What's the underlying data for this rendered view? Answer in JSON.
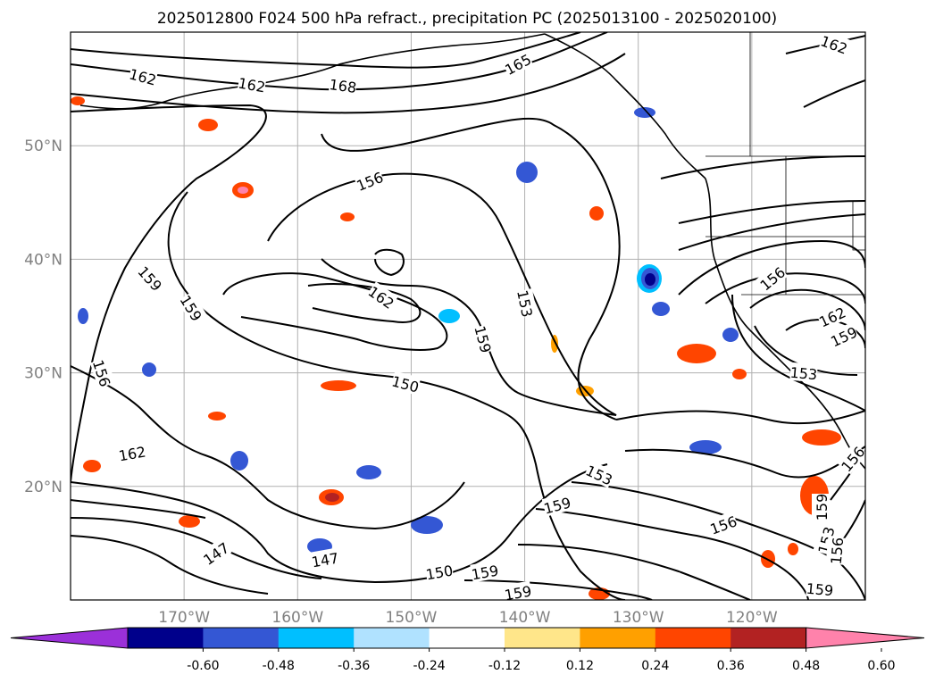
{
  "title": "2025012800 F024 500 hPa refract., precipitation PC (2025013100 - 2025020100)",
  "map": {
    "lon_range": [
      -180,
      -110
    ],
    "lat_range": [
      10,
      60
    ],
    "lon_ticks": [
      {
        "value": -170,
        "label": "170°W"
      },
      {
        "value": -160,
        "label": "160°W"
      },
      {
        "value": -150,
        "label": "150°W"
      },
      {
        "value": -140,
        "label": "140°W"
      },
      {
        "value": -130,
        "label": "130°W"
      },
      {
        "value": -120,
        "label": "120°W"
      }
    ],
    "lat_ticks": [
      {
        "value": 50,
        "label": "50°N"
      },
      {
        "value": 40,
        "label": "40°N"
      },
      {
        "value": 30,
        "label": "30°N"
      },
      {
        "value": 20,
        "label": "20°N"
      }
    ],
    "grid": true,
    "contour_labels": [
      "162",
      "162",
      "168",
      "165",
      "162",
      "156",
      "159",
      "159",
      "156",
      "162",
      "153",
      "159",
      "150",
      "162",
      "147",
      "147",
      "153",
      "159",
      "150",
      "159",
      "159",
      "156",
      "156",
      "162",
      "159",
      "153",
      "156",
      "159",
      "153",
      "156",
      "159"
    ]
  },
  "colorbar": {
    "ticks": [
      "-0.60",
      "-0.48",
      "-0.36",
      "-0.24",
      "-0.12",
      "0.12",
      "0.24",
      "0.36",
      "0.48",
      "0.60"
    ],
    "colors": [
      "#9b30d9",
      "#00008b",
      "#3457d4",
      "#00bfff",
      "#b0e2ff",
      "#ffffff",
      "#ffe68a",
      "#ffa000",
      "#ff4500",
      "#b22222",
      "#ff82ab"
    ],
    "extend": "both"
  },
  "colors": {
    "contour": "#000000",
    "grid": "#b0b0b0",
    "tick_label": "#808080"
  }
}
